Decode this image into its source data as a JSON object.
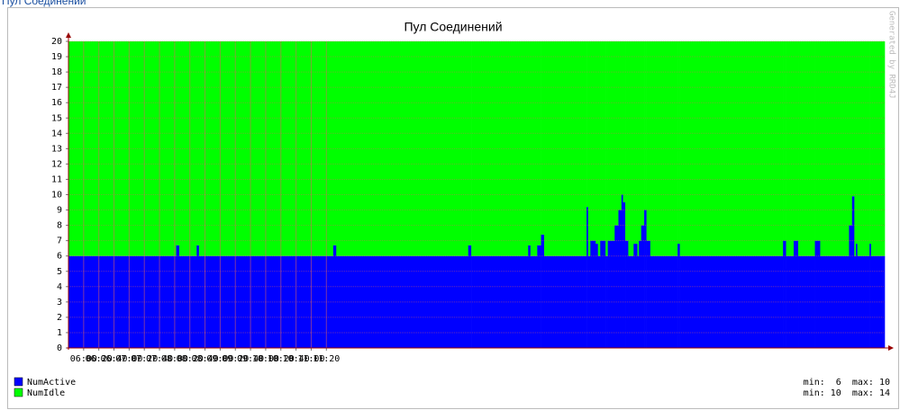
{
  "page_link": "Пул Соединений",
  "chart_data": {
    "type": "stacked_step_area",
    "title": "Пул Соединений",
    "watermark": "Generated by RRD4J",
    "x": [
      340,
      482,
      486,
      509,
      512,
      689,
      693,
      867,
      871,
      946,
      949,
      958,
      963,
      967,
      1023,
      1025,
      1028,
      1035,
      1038,
      1041,
      1048,
      1051,
      1060,
      1065,
      1069,
      1071,
      1074,
      1078,
      1085,
      1090,
      1092,
      1095,
      1099,
      1102,
      1107,
      1143,
      1146,
      1282,
      1286,
      1296,
      1302,
      1324,
      1331,
      1369,
      1373,
      1376,
      1378,
      1380,
      1396,
      1398
    ],
    "series": [
      {
        "name": "NumActive",
        "color": "#0000ff",
        "stats": "min:  6  max: 10",
        "values": [
          6,
          6.7,
          6,
          6.7,
          6,
          6.7,
          6,
          6.7,
          6,
          6.7,
          6,
          6.7,
          7.4,
          6,
          9.2,
          6,
          7,
          6.8,
          6,
          7,
          6,
          7,
          8,
          9,
          10,
          9.5,
          7,
          6,
          6.8,
          6,
          7,
          8,
          9,
          7,
          6,
          6.8,
          6,
          7,
          6,
          7,
          6,
          7,
          6,
          8,
          9.9,
          6,
          6.8,
          6,
          6.8,
          6
        ]
      },
      {
        "name": "NumIdle",
        "color": "#00ff00",
        "stats": "min: 10  max: 14",
        "values": [
          14,
          13.3,
          14,
          13.3,
          14,
          13.3,
          14,
          13.3,
          14,
          13.3,
          14,
          13.3,
          12.6,
          14,
          10.8,
          14,
          13,
          13.2,
          14,
          13,
          14,
          13,
          12,
          11,
          10,
          10.5,
          13,
          14,
          13.2,
          14,
          13,
          12,
          11,
          13,
          14,
          13.2,
          14,
          13,
          14,
          13,
          14,
          13,
          14,
          12,
          10.1,
          14,
          13.2,
          14,
          13.2,
          14
        ]
      }
    ],
    "xlim": [
      340,
      1416
    ],
    "xticks": [
      {
        "value": 360,
        "label": "06:00"
      },
      {
        "value": 380,
        "label": "06:20"
      },
      {
        "value": 400,
        "label": "06:40"
      },
      {
        "value": 420,
        "label": "07:00"
      },
      {
        "value": 440,
        "label": "07:20"
      },
      {
        "value": 460,
        "label": "07:40"
      },
      {
        "value": 480,
        "label": "08:00"
      },
      {
        "value": 500,
        "label": "08:20"
      },
      {
        "value": 520,
        "label": "08:40"
      },
      {
        "value": 540,
        "label": "09:00"
      },
      {
        "value": 560,
        "label": "09:20"
      },
      {
        "value": 580,
        "label": "09:40"
      },
      {
        "value": 600,
        "label": "10:00"
      },
      {
        "value": 620,
        "label": "10:20"
      },
      {
        "value": 640,
        "label": "10:40"
      },
      {
        "value": 660,
        "label": "11:00"
      },
      {
        "value": 680,
        "label": "11:20"
      }
    ],
    "ylim": [
      0,
      20
    ],
    "yticks": [
      0,
      1,
      2,
      3,
      4,
      5,
      6,
      7,
      8,
      9,
      10,
      11,
      12,
      13,
      14,
      15,
      16,
      17,
      18,
      19,
      20
    ],
    "grid": true
  }
}
